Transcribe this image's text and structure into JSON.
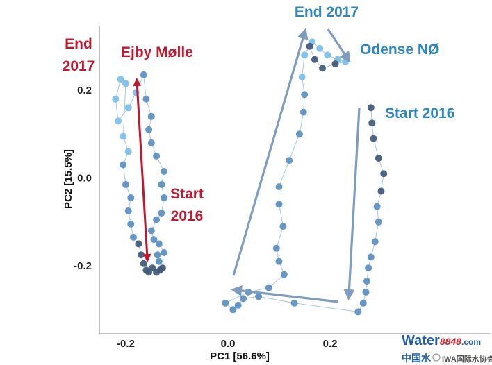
{
  "chart_data": {
    "type": "scatter",
    "xlabel": "PC1 [56.6%]",
    "ylabel": "PC2 [15.5%]",
    "xlim": [
      -0.28,
      0.38
    ],
    "ylim": [
      -0.34,
      0.36
    ],
    "x_ticks": [
      {
        "value": -0.2,
        "label": "-0.2"
      },
      {
        "value": 0.0,
        "label": "0.0"
      },
      {
        "value": 0.2,
        "label": "0.2"
      }
    ],
    "y_ticks": [
      {
        "value": 0.2,
        "label": "0.2"
      },
      {
        "value": 0.0,
        "label": "0.0"
      },
      {
        "value": -0.2,
        "label": "-0.2"
      }
    ],
    "grid": false,
    "colors": {
      "ejby": "#c0182e",
      "odense": "#2e86c1",
      "point_dark": "#3e5877",
      "point_mid": "#5a8fc0",
      "point_light": "#7bbfe8",
      "arrow_blue": "#7d9cc0",
      "line": "#a9c7e3"
    },
    "series": [
      {
        "name": "Ejby Mølle",
        "points": [
          [
            -0.155,
            -0.215
          ],
          [
            -0.148,
            -0.205
          ],
          [
            -0.14,
            -0.215
          ],
          [
            -0.133,
            -0.21
          ],
          [
            -0.128,
            -0.205
          ],
          [
            -0.135,
            -0.19
          ],
          [
            -0.138,
            -0.175
          ],
          [
            -0.125,
            -0.17
          ],
          [
            -0.135,
            -0.15
          ],
          [
            -0.145,
            -0.14
          ],
          [
            -0.15,
            -0.12
          ],
          [
            -0.14,
            -0.095
          ],
          [
            -0.13,
            -0.08
          ],
          [
            -0.125,
            -0.045
          ],
          [
            -0.13,
            -0.015
          ],
          [
            -0.125,
            0.015
          ],
          [
            -0.14,
            0.05
          ],
          [
            -0.15,
            0.08
          ],
          [
            -0.155,
            0.11
          ],
          [
            -0.15,
            0.14
          ],
          [
            -0.16,
            0.18
          ],
          [
            -0.165,
            0.235
          ],
          [
            -0.18,
            0.195
          ],
          [
            -0.195,
            0.16
          ],
          [
            -0.215,
            0.13
          ],
          [
            -0.22,
            0.18
          ],
          [
            -0.21,
            0.225
          ],
          [
            -0.2,
            0.215
          ],
          [
            -0.205,
            0.095
          ],
          [
            -0.195,
            0.06
          ],
          [
            -0.205,
            0.03
          ],
          [
            -0.2,
            -0.015
          ],
          [
            -0.19,
            -0.045
          ],
          [
            -0.195,
            -0.075
          ],
          [
            -0.19,
            -0.105
          ],
          [
            -0.185,
            -0.135
          ],
          [
            -0.175,
            -0.15
          ],
          [
            -0.17,
            -0.175
          ],
          [
            -0.165,
            -0.195
          ],
          [
            -0.16,
            -0.21
          ]
        ]
      },
      {
        "name": "Odense NØ",
        "points": [
          [
            0.28,
            0.16
          ],
          [
            0.282,
            0.125
          ],
          [
            0.285,
            0.09
          ],
          [
            0.295,
            0.045
          ],
          [
            0.305,
            0.01
          ],
          [
            0.3,
            -0.03
          ],
          [
            0.292,
            -0.065
          ],
          [
            0.295,
            -0.1
          ],
          [
            0.288,
            -0.145
          ],
          [
            0.28,
            -0.18
          ],
          [
            0.275,
            -0.205
          ],
          [
            0.272,
            -0.235
          ],
          [
            0.27,
            -0.26
          ],
          [
            0.265,
            -0.285
          ],
          [
            0.255,
            -0.305
          ],
          [
            0.13,
            -0.285
          ],
          [
            0.06,
            -0.27
          ],
          [
            0.03,
            -0.275
          ],
          [
            0.02,
            -0.29
          ],
          [
            0.01,
            -0.3
          ],
          [
            -0.005,
            -0.285
          ],
          [
            0.04,
            -0.26
          ],
          [
            0.08,
            -0.25
          ],
          [
            0.11,
            -0.22
          ],
          [
            0.1,
            -0.19
          ],
          [
            0.095,
            -0.16
          ],
          [
            0.108,
            -0.11
          ],
          [
            0.1,
            -0.06
          ],
          [
            0.1,
            -0.02
          ],
          [
            0.12,
            0.04
          ],
          [
            0.14,
            0.1
          ],
          [
            0.148,
            0.15
          ],
          [
            0.15,
            0.19
          ],
          [
            0.145,
            0.23
          ],
          [
            0.15,
            0.28
          ],
          [
            0.165,
            0.31
          ],
          [
            0.18,
            0.295
          ],
          [
            0.195,
            0.28
          ],
          [
            0.215,
            0.27
          ],
          [
            0.23,
            0.265
          ],
          [
            0.21,
            0.26
          ],
          [
            0.185,
            0.25
          ],
          [
            0.17,
            0.27
          ],
          [
            0.16,
            0.3
          ]
        ]
      }
    ],
    "annotations": {
      "ejby_end": [
        "End",
        "2017"
      ],
      "ejby_name": "Ejby Mølle",
      "ejby_start": [
        "Start",
        "2016"
      ],
      "odense_end": "End 2017",
      "odense_name": "Odense NØ",
      "odense_start": "Start 2016"
    }
  },
  "watermark": {
    "brand_main": "Water",
    "brand_num": "8848",
    "brand_suffix": ".com",
    "sub_left": "中国水",
    "sub_right": "IWA国际水协会网"
  }
}
